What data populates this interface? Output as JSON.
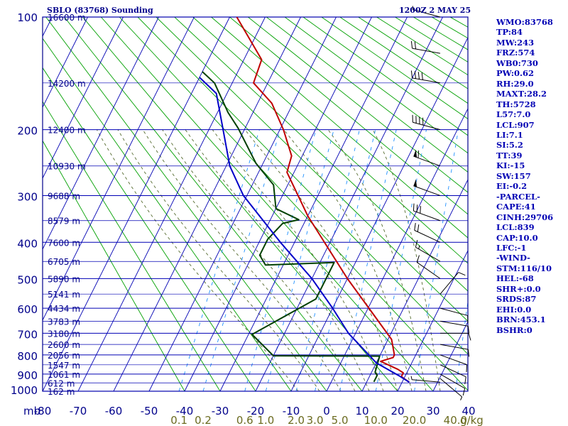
{
  "header": {
    "station_title": "SBLO (83768) Sounding",
    "time_label": "1200Z  2 MAY 25"
  },
  "colors": {
    "frame": "#00008b",
    "grid": "#0000b4",
    "dry_adiabat": "#00a000",
    "moist_adiabat": "#556b2f",
    "mixing_ratio": "#1e90ff",
    "temperature": "#c00000",
    "dewpoint": "#004000",
    "parcel": "#0000c8",
    "mixing_label": "#6b6b20",
    "barb": "#000000"
  },
  "indices": [
    "WMO:83768",
    "TP:84",
    "MW:243",
    "FRZ:574",
    "WB0:730",
    "PW:0.62",
    "RH:29.0",
    "MAXT:28.2",
    "TH:5728",
    "L57:7.0",
    "LCL:907",
    "LI:7.1",
    "SI:5.2",
    "TT:39",
    "KI:-15",
    "SW:157",
    "EI:-0.2",
    "-PARCEL-",
    "CAPE:41",
    "CINH:29706",
    "LCL:839",
    "CAP:10.0",
    "LFC:-1",
    "-WIND-",
    "STM:116/10",
    "HEL:-68",
    "SHR+:0.0",
    "SRDS:87",
    "EHI:0.0",
    "BRN:453.1",
    "BSHR:0"
  ],
  "chart_data": {
    "type": "line",
    "title": "SBLO (83768) Sounding",
    "subtitle": "1200Z  2 MAY 25",
    "xlabel": "",
    "ylabel": "mb",
    "xlim": [
      -80,
      40
    ],
    "ylim": [
      1000,
      100
    ],
    "y_scale": "log",
    "x_skew": "skewed",
    "grid": true,
    "pressure_ticks": [
      100,
      200,
      300,
      400,
      500,
      600,
      700,
      800,
      900,
      1000
    ],
    "pressure_tick_labels": [
      "100",
      "200",
      "300",
      "400",
      "500",
      "600",
      "700",
      "800",
      "900",
      "1000"
    ],
    "temperature_ticks": [
      -80,
      -70,
      -60,
      -50,
      -40,
      -30,
      -20,
      -10,
      0,
      10,
      20,
      30,
      40
    ],
    "temperature_tick_labels": [
      "-80",
      "-70",
      "-60",
      "-50",
      "-40",
      "-30",
      "-20",
      "-10",
      "0",
      "10",
      "20",
      "30",
      "40"
    ],
    "unit_label": "mb",
    "mixing_ratio_ticks": [
      0.1,
      0.2,
      0.6,
      1.0,
      2.0,
      3.0,
      5.0,
      10.0,
      20.0,
      40.0
    ],
    "mixing_ratio_labels": [
      "0.1",
      "0.2",
      "0.6",
      "1.0",
      "2.0",
      "3.0",
      "5.0",
      "10.0",
      "20.0",
      "40.0"
    ],
    "mixing_ratio_unit": "g/kg",
    "height_labels": [
      {
        "pressure": 100,
        "text": "16600 m"
      },
      {
        "pressure": 150,
        "text": "14200 m"
      },
      {
        "pressure": 200,
        "text": "12400 m"
      },
      {
        "pressure": 250,
        "text": "10930 m"
      },
      {
        "pressure": 300,
        "text": "9688 m"
      },
      {
        "pressure": 350,
        "text": "8579 m"
      },
      {
        "pressure": 400,
        "text": "7600 m"
      },
      {
        "pressure": 450,
        "text": "6705 m"
      },
      {
        "pressure": 500,
        "text": "5890 m"
      },
      {
        "pressure": 550,
        "text": "5141 m"
      },
      {
        "pressure": 600,
        "text": "4434 m"
      },
      {
        "pressure": 650,
        "text": "3783 m"
      },
      {
        "pressure": 700,
        "text": "3180 m"
      },
      {
        "pressure": 750,
        "text": "2600 m"
      },
      {
        "pressure": 800,
        "text": "2056 m"
      },
      {
        "pressure": 850,
        "text": "1547 m"
      },
      {
        "pressure": 900,
        "text": "1061 m"
      },
      {
        "pressure": 950,
        "text": "612 m"
      },
      {
        "pressure": 1000,
        "text": "162 m"
      }
    ],
    "series": [
      {
        "key": "temperature",
        "points": [
          [
            946,
            22
          ],
          [
            914,
            19
          ],
          [
            893,
            19
          ],
          [
            874,
            17
          ],
          [
            832,
            11
          ],
          [
            813,
            14
          ],
          [
            800,
            14
          ],
          [
            727,
            11
          ],
          [
            500,
            -10
          ],
          [
            340,
            -30
          ],
          [
            260,
            -42
          ],
          [
            235,
            -43
          ],
          [
            200,
            -49
          ],
          [
            170,
            -56
          ],
          [
            150,
            -64
          ],
          [
            130,
            -65
          ],
          [
            100,
            -78
          ]
        ]
      },
      {
        "key": "dewpoint",
        "points": [
          [
            944,
            12
          ],
          [
            907,
            12
          ],
          [
            890,
            11
          ],
          [
            806,
            10
          ],
          [
            804,
            -20
          ],
          [
            705,
            -29
          ],
          [
            567,
            -16
          ],
          [
            453,
            -16
          ],
          [
            460,
            -35
          ],
          [
            433,
            -38
          ],
          [
            392,
            -38
          ],
          [
            356,
            -36
          ],
          [
            348,
            -32
          ],
          [
            325,
            -40
          ],
          [
            281,
            -44
          ],
          [
            246,
            -52
          ],
          [
            198,
            -62
          ],
          [
            180,
            -67
          ],
          [
            150,
            -75
          ],
          [
            140,
            -80
          ]
        ]
      },
      {
        "key": "parcel",
        "points": [
          [
            946,
            22
          ],
          [
            907,
            18
          ],
          [
            840,
            10
          ],
          [
            700,
            -2
          ],
          [
            600,
            -10
          ],
          [
            500,
            -20
          ],
          [
            400,
            -34
          ],
          [
            300,
            -51
          ],
          [
            250,
            -59
          ],
          [
            200,
            -66
          ],
          [
            160,
            -73
          ],
          [
            145,
            -80
          ]
        ]
      }
    ],
    "wind_barbs": [
      {
        "pressure": 946,
        "direction": 275,
        "speed": 5
      },
      {
        "pressure": 925,
        "direction": 130,
        "speed": 5
      },
      {
        "pressure": 900,
        "direction": 120,
        "speed": 10
      },
      {
        "pressure": 850,
        "direction": 115,
        "speed": 10
      },
      {
        "pressure": 800,
        "direction": 110,
        "speed": 10
      },
      {
        "pressure": 750,
        "direction": 100,
        "speed": 10
      },
      {
        "pressure": 700,
        "direction": 90,
        "speed": 10
      },
      {
        "pressure": 650,
        "direction": 100,
        "speed": 10
      },
      {
        "pressure": 600,
        "direction": 105,
        "speed": 10
      },
      {
        "pressure": 550,
        "direction": 40,
        "speed": 10
      },
      {
        "pressure": 500,
        "direction": 305,
        "speed": 10
      },
      {
        "pressure": 450,
        "direction": 300,
        "speed": 15
      },
      {
        "pressure": 400,
        "direction": 295,
        "speed": 20
      },
      {
        "pressure": 350,
        "direction": 290,
        "speed": 30
      },
      {
        "pressure": 300,
        "direction": 290,
        "speed": 50
      },
      {
        "pressure": 250,
        "direction": 290,
        "speed": 60
      },
      {
        "pressure": 200,
        "direction": 285,
        "speed": 40
      },
      {
        "pressure": 150,
        "direction": 280,
        "speed": 40
      },
      {
        "pressure": 125,
        "direction": 280,
        "speed": 20
      },
      {
        "pressure": 100,
        "direction": 285,
        "speed": 5
      }
    ]
  }
}
